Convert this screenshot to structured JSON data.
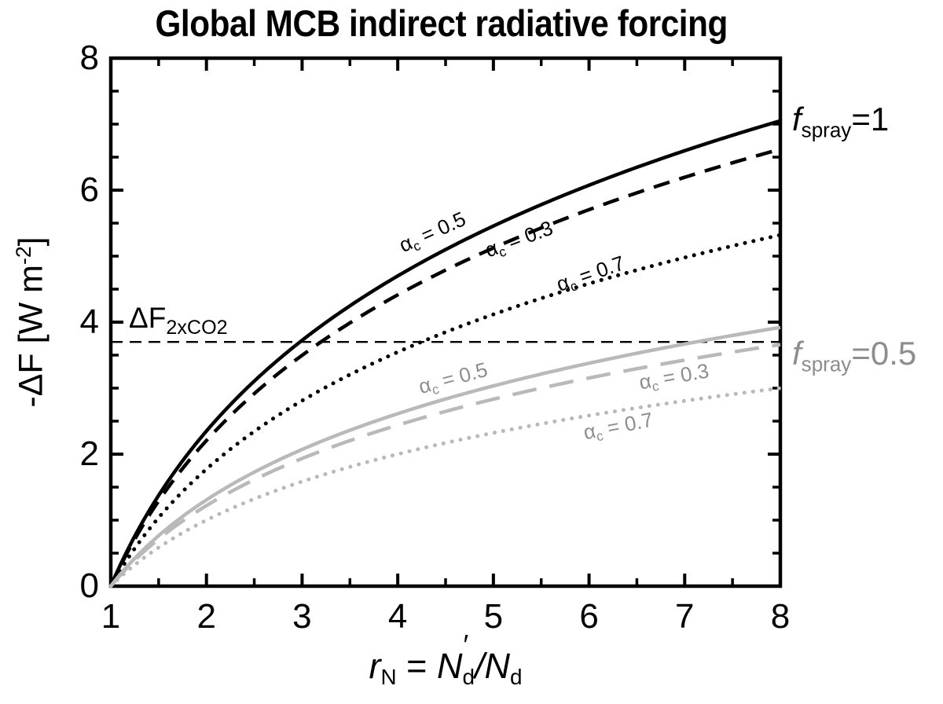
{
  "title": "Global MCB indirect radiative forcing",
  "colors": {
    "black": "#000000",
    "gray_curve": "#b9b9b9",
    "gray_text": "#8d8d8d"
  },
  "axes": {
    "x": {
      "title_parts": {
        "var": "r",
        "var_sub": "N",
        "eq": " = ",
        "num": "N",
        "num_sub": "d",
        "prime": "′",
        "slash": "/",
        "den": "N",
        "den_sub": "d"
      },
      "min": 1,
      "max": 8,
      "minor_step": 0.5,
      "major_ticks": [
        1,
        2,
        3,
        4,
        5,
        6,
        7,
        8
      ],
      "tick_labels": [
        "1",
        "2",
        "3",
        "4",
        "5",
        "6",
        "7",
        "8"
      ]
    },
    "y": {
      "title_parts": {
        "pre": "-ΔF [W m",
        "sup": "-2",
        "post": "]"
      },
      "min": 0,
      "max": 8,
      "minor_step": 0.5,
      "major_ticks": [
        0,
        2,
        4,
        6,
        8
      ],
      "tick_labels": [
        "0",
        "2",
        "4",
        "6",
        "8"
      ]
    }
  },
  "reference_line": {
    "value": 3.7,
    "label": {
      "main": "ΔF",
      "sub": "2xCO2"
    }
  },
  "group_labels": [
    {
      "pre": "f",
      "sub": "spray",
      "post": "=1",
      "color": "#000000"
    },
    {
      "pre": "f",
      "sub": "spray",
      "post": "=0.5",
      "color": "#8d8d8d"
    }
  ],
  "chart_data": {
    "type": "line",
    "title": "Global MCB indirect radiative forcing",
    "xlabel": "r_N = N'_d / N_d",
    "ylabel": "-ΔF [W m^-2]",
    "xlim": [
      1,
      8
    ],
    "ylim": [
      0,
      8
    ],
    "grid": false,
    "x": [
      1,
      2,
      3,
      4,
      5,
      6,
      7,
      8
    ],
    "series": [
      {
        "name": "f_spray=1, alpha_c=0.5",
        "line": "solid",
        "color": "#000000",
        "label_color": "#000000",
        "label": {
          "sym": "α",
          "sub": "c",
          "rest": " = 0.5"
        },
        "values": [
          0,
          2.35,
          3.72,
          4.7,
          5.46,
          6.08,
          6.6,
          7.05
        ]
      },
      {
        "name": "f_spray=1, alpha_c=0.3",
        "line": "dashed",
        "color": "#000000",
        "label_color": "#000000",
        "label": {
          "sym": "α",
          "sub": "c",
          "rest": " = 0.3"
        },
        "values": [
          0,
          2.21,
          3.5,
          4.41,
          5.12,
          5.7,
          6.19,
          6.62
        ]
      },
      {
        "name": "f_spray=1, alpha_c=0.7",
        "line": "dotted",
        "color": "#000000",
        "label_color": "#000000",
        "label": {
          "sym": "α",
          "sub": "c",
          "rest": " = 0.7"
        },
        "values": [
          0,
          1.77,
          2.81,
          3.55,
          4.12,
          4.58,
          4.98,
          5.32
        ]
      },
      {
        "name": "f_spray=0.5, alpha_c=0.5",
        "line": "solid",
        "color": "#b9b9b9",
        "label_color": "#8d8d8d",
        "label": {
          "sym": "α",
          "sub": "c",
          "rest": " = 0.5"
        },
        "values": [
          0,
          1.31,
          2.07,
          2.61,
          3.03,
          3.38,
          3.67,
          3.92
        ]
      },
      {
        "name": "f_spray=0.5, alpha_c=0.3",
        "line": "dashed",
        "color": "#b9b9b9",
        "label_color": "#8d8d8d",
        "label": {
          "sym": "α",
          "sub": "c",
          "rest": " = 0.3"
        },
        "values": [
          0,
          1.22,
          1.93,
          2.44,
          2.83,
          3.15,
          3.42,
          3.66
        ]
      },
      {
        "name": "f_spray=0.5, alpha_c=0.7",
        "line": "dotted",
        "color": "#b9b9b9",
        "label_color": "#8d8d8d",
        "label": {
          "sym": "α",
          "sub": "c",
          "rest": " = 0.7"
        },
        "values": [
          0,
          1.0,
          1.59,
          2.0,
          2.32,
          2.59,
          2.81,
          3.0
        ]
      }
    ],
    "annotations": [
      "ΔF_2xCO2 = 3.7 W m^-2 horizontal dashed line",
      "f_spray=1 labels black curves",
      "f_spray=0.5 labels gray curves"
    ]
  }
}
